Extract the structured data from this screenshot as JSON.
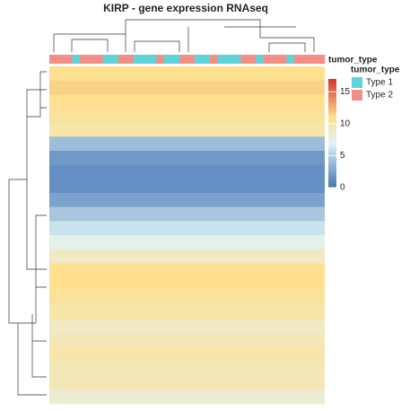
{
  "chart_data": {
    "type": "heatmap",
    "title": "KIRP - gene expression RNAseq",
    "annotation_label": "tumor_type",
    "legend_title": "tumor_type",
    "annotation_categories": [
      "Type 1",
      "Type 2"
    ],
    "annotation_colors": [
      "#5fd3da",
      "#f28e86"
    ],
    "columns": [
      "Type 2",
      "Type 2",
      "Type 2",
      "Type 1",
      "Type 2",
      "Type 2",
      "Type 2",
      "Type 1",
      "Type 1",
      "Type 2",
      "Type 2",
      "Type 1",
      "Type 1",
      "Type 1",
      "Type 2",
      "Type 1",
      "Type 1",
      "Type 2",
      "Type 2",
      "Type 1",
      "Type 1",
      "Type 2",
      "Type 1",
      "Type 1",
      "Type 1",
      "Type 2",
      "Type 2",
      "Type 1",
      "Type 2",
      "Type 2",
      "Type 2",
      "Type 1",
      "Type 2",
      "Type 2",
      "Type 2",
      "Type 2"
    ],
    "row_values": [
      11,
      11.5,
      11,
      10.5,
      10,
      4,
      2,
      1.5,
      1.5,
      2.5,
      4.5,
      6,
      7.5,
      9,
      11,
      11,
      10.5,
      10,
      9,
      9.5,
      10,
      9.5,
      9.5,
      8.5
    ],
    "color_scale": [
      "#4575b4",
      "#e0f3f8",
      "#fee090",
      "#d73027"
    ],
    "color_stops": [
      0,
      7,
      11,
      17
    ],
    "clim": [
      0,
      17
    ],
    "cticks": [
      0,
      5,
      10,
      15
    ]
  }
}
